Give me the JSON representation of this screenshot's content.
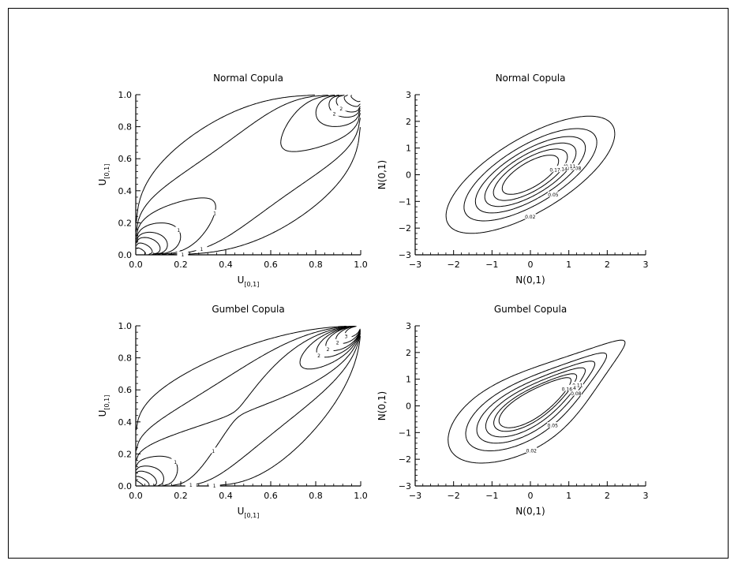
{
  "chart_data": [
    {
      "type": "contour",
      "title": "Normal Copula",
      "xlabel": "U",
      "xlabel_sub": "[0,1]",
      "ylabel": "U",
      "ylabel_sub": "[0,1]",
      "xlim": [
        0.0,
        1.0
      ],
      "ylim": [
        0.0,
        1.0
      ],
      "xticks": [
        "0.0",
        "0.2",
        "0.4",
        "0.6",
        "0.8",
        "1.0"
      ],
      "yticks": [
        "0.0",
        "0.2",
        "0.4",
        "0.6",
        "0.8",
        "1.0"
      ],
      "copula": "normal",
      "rho": 0.7,
      "levels": [
        0.5,
        1,
        1.5,
        2,
        2.5,
        3,
        4,
        6
      ],
      "level_labels": [
        "1",
        "1",
        "1",
        "1",
        "2",
        "2"
      ]
    },
    {
      "type": "contour",
      "title": "Normal Copula",
      "xlabel": "N(0,1)",
      "ylabel": "N(0,1)",
      "xlim": [
        -3,
        3
      ],
      "ylim": [
        -3,
        3
      ],
      "xticks": [
        "−3",
        "−2",
        "−1",
        "0",
        "1",
        "2",
        "3"
      ],
      "yticks": [
        "−3",
        "−2",
        "−1",
        "0",
        "1",
        "2",
        "3"
      ],
      "copula": "normal",
      "rho": 0.7,
      "levels": [
        0.02,
        0.05,
        0.08,
        0.11,
        0.14,
        0.17
      ],
      "level_labels": [
        "0.02",
        "0.05",
        "0.08",
        "0.11",
        "0.14",
        "0.17"
      ]
    },
    {
      "type": "contour",
      "title": "Gumbel Copula",
      "xlabel": "U",
      "xlabel_sub": "[0,1]",
      "ylabel": "U",
      "ylabel_sub": "[0,1]",
      "xlim": [
        0.0,
        1.0
      ],
      "ylim": [
        0.0,
        1.0
      ],
      "xticks": [
        "0.0",
        "0.2",
        "0.4",
        "0.6",
        "0.8",
        "1.0"
      ],
      "yticks": [
        "0.0",
        "0.2",
        "0.4",
        "0.6",
        "0.8",
        "1.0"
      ],
      "copula": "gumbel",
      "theta": 2,
      "levels": [
        0.5,
        1,
        1.5,
        2,
        2.5,
        3,
        4,
        6
      ],
      "level_labels": [
        "1",
        "1",
        "1",
        "1",
        "2",
        "2",
        "2",
        "3"
      ]
    },
    {
      "type": "contour",
      "title": "Gumbel Copula",
      "xlabel": "N(0,1)",
      "ylabel": "N(0,1)",
      "xlim": [
        -3,
        3
      ],
      "ylim": [
        -3,
        3
      ],
      "xticks": [
        "−3",
        "−2",
        "−1",
        "0",
        "1",
        "2",
        "3"
      ],
      "yticks": [
        "−3",
        "−2",
        "−1",
        "0",
        "1",
        "2",
        "3"
      ],
      "copula": "gumbel",
      "theta": 2,
      "levels": [
        0.02,
        0.05,
        0.08,
        0.11,
        0.14,
        0.16
      ],
      "level_labels": [
        "0.02",
        "0.05",
        "0.08",
        "0.11",
        "0.14",
        "0.16"
      ]
    }
  ]
}
